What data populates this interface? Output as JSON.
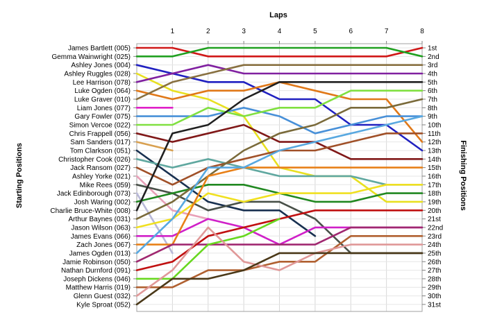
{
  "chart_data": {
    "type": "line",
    "title": "",
    "xlabel_top": "Laps",
    "ylabel_left": "Starting Positions",
    "ylabel_right": "Finishing Positions",
    "x_ticks": [
      1,
      2,
      3,
      4,
      5,
      6,
      7,
      8
    ],
    "xlim": [
      0,
      8
    ],
    "ylim": [
      1,
      31
    ],
    "y_inverted": true,
    "grid": true,
    "right_labels": [
      "1st",
      "2nd",
      "3rd",
      "4th",
      "5th",
      "6th",
      "7th",
      "8th",
      "9th",
      "10th",
      "11th",
      "12th",
      "13th",
      "14th",
      "15th",
      "16th",
      "17th",
      "18th",
      "19th",
      "20th",
      "21st",
      "22nd",
      "23rd",
      "24th",
      "25th",
      "26th",
      "27th",
      "28th",
      "29th",
      "30th",
      "31st"
    ],
    "drivers": [
      {
        "name": "James Bartlett (005)",
        "color": "#d01818",
        "positions": [
          1,
          1,
          2,
          2,
          2,
          2,
          2,
          2,
          1
        ]
      },
      {
        "name": "Gemma Wainwright (025)",
        "color": "#20a020",
        "positions": [
          2,
          2,
          1,
          1,
          1,
          1,
          1,
          1,
          2
        ]
      },
      {
        "name": "Ashley Jones (004)",
        "color": "#2020c0",
        "positions": [
          3,
          4,
          5,
          5,
          7,
          7,
          10,
          10,
          13
        ]
      },
      {
        "name": "Ashley Ruggles (028)",
        "color": "#e8e020",
        "positions": [
          4,
          6,
          7,
          9,
          15,
          16,
          16,
          19,
          19
        ]
      },
      {
        "name": "Lee Harrison (078)",
        "color": "#8020a0",
        "positions": [
          5,
          4,
          3,
          4,
          4,
          4,
          4,
          4,
          4
        ]
      },
      {
        "name": "Luke Ogden (064)",
        "color": "#e07818",
        "positions": [
          6,
          7,
          6,
          6,
          5,
          6,
          7,
          7,
          12
        ]
      },
      {
        "name": "Luke Graver (010)",
        "color": "#887040",
        "positions": [
          7,
          5,
          4,
          3,
          3,
          3,
          3,
          3,
          3
        ]
      },
      {
        "name": "Liam Jones (077)",
        "color": "#e020c8",
        "positions": [
          8,
          8
        ]
      },
      {
        "name": "Gary Fowler (075)",
        "color": "#4890d8",
        "positions": [
          9,
          9,
          9,
          8,
          9,
          11,
          10,
          9,
          9
        ]
      },
      {
        "name": "Simon Vercoe (022)",
        "color": "#80e040",
        "positions": [
          10,
          10,
          8,
          9,
          8,
          8,
          6,
          6,
          6
        ]
      },
      {
        "name": "Chris Frappell (056)",
        "color": "#801818",
        "positions": [
          11,
          12,
          11,
          10,
          12,
          12,
          14,
          14,
          14
        ]
      },
      {
        "name": "Sam Sanders (017)",
        "color": "#d8a050",
        "positions": [
          12,
          13
        ]
      },
      {
        "name": "Tom Clarkson (051)",
        "color": "#183050",
        "positions": [
          13,
          16,
          19,
          20,
          20,
          23
        ]
      },
      {
        "name": "Christopher Cook (026)",
        "color": "#60a8a0",
        "positions": [
          14,
          15,
          14,
          15,
          16,
          16,
          16,
          17,
          17
        ]
      },
      {
        "name": "Jack Ransom (027)",
        "color": "#a05028",
        "positions": [
          15,
          17,
          15,
          14,
          13,
          13,
          12,
          11,
          11
        ]
      },
      {
        "name": "Ashley Yorke (021)",
        "color": "#e8a0b8",
        "positions": [
          16,
          20,
          21
        ]
      },
      {
        "name": "Mike Rees (059)",
        "color": "#485048",
        "positions": [
          17,
          18,
          20,
          19,
          19,
          21,
          25,
          25,
          25
        ]
      },
      {
        "name": "Jack Edinborough (073)",
        "color": "#b8b8d8",
        "positions": [
          18,
          25
        ]
      },
      {
        "name": "Josh Waring (002)",
        "color": "#208820",
        "positions": [
          19,
          18,
          17,
          17,
          18,
          19,
          19,
          18,
          18
        ]
      },
      {
        "name": "Charlie Bruce-White (008)",
        "color": "#202020",
        "positions": [
          20,
          11,
          10,
          7,
          5,
          5,
          5,
          5,
          5
        ]
      },
      {
        "name": "Arthur Baynes (031)",
        "color": "#7a6a3a",
        "positions": [
          21,
          19,
          16,
          13,
          11,
          10,
          8,
          8,
          7
        ]
      },
      {
        "name": "Jason Wilson (063)",
        "color": "#f0e020",
        "positions": [
          22,
          21,
          18,
          19,
          18,
          18,
          18,
          17,
          17
        ]
      },
      {
        "name": "James Evans (066)",
        "color": "#d020c8",
        "positions": [
          23,
          23,
          21,
          22,
          24,
          22,
          22,
          22,
          22
        ]
      },
      {
        "name": "Zach Jones (067)",
        "color": "#e88018",
        "positions": [
          24,
          24,
          16,
          15,
          15,
          15,
          15,
          15,
          15
        ]
      },
      {
        "name": "James Ogden (013)",
        "color": "#58a8e0",
        "positions": [
          25,
          21,
          15,
          15,
          13,
          12,
          11,
          10,
          9
        ]
      },
      {
        "name": "Jamie Robinson (050)",
        "color": "#a02870",
        "positions": [
          26,
          24,
          24,
          24,
          24,
          24,
          22,
          22,
          22
        ]
      },
      {
        "name": "Nathan Durnford (091)",
        "color": "#c01010",
        "positions": [
          27,
          26,
          23,
          22,
          21,
          20,
          20,
          20,
          20
        ]
      },
      {
        "name": "Joseph Dickens (046)",
        "color": "#68d820",
        "positions": [
          28,
          28,
          24,
          23,
          21
        ]
      },
      {
        "name": "Matthew Harris (019)",
        "color": "#b06030",
        "positions": [
          29,
          29,
          27,
          27,
          26,
          26,
          23,
          23,
          23
        ]
      },
      {
        "name": "Glenn Guest (032)",
        "color": "#e09898",
        "positions": [
          30,
          27,
          22,
          26,
          27,
          25,
          24,
          24,
          24
        ]
      },
      {
        "name": "Kyle Sproat (052)",
        "color": "#4a3818",
        "positions": [
          31,
          28,
          28,
          27,
          25,
          25,
          25,
          25,
          25
        ]
      }
    ]
  }
}
